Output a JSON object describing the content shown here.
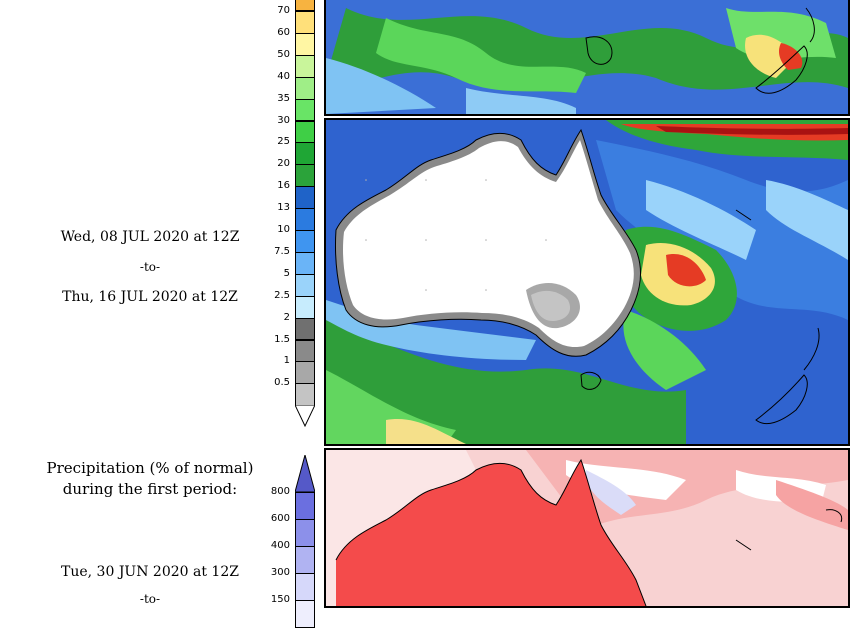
{
  "precip_scale": {
    "labels": [
      "70",
      "60",
      "50",
      "40",
      "35",
      "30",
      "25",
      "20",
      "16",
      "13",
      "10",
      "7.5",
      "5",
      "2.5",
      "2",
      "1.5",
      "1",
      "0.5"
    ],
    "colors": [
      "#ffe07a",
      "#fff6a3",
      "#c9f59b",
      "#9fee87",
      "#69e466",
      "#3fcf46",
      "#1fa635",
      "#2ba33a",
      "#1f63c8",
      "#2b7be0",
      "#3f95f0",
      "#6ab4f7",
      "#9ad3fa",
      "#c7ecfd",
      "#707070",
      "#8a8a8a",
      "#a8a8a8",
      "#c4c4c4"
    ],
    "top_color": "#f7b340"
  },
  "period_text": {
    "start": "Wed, 08 JUL 2020 at 12Z",
    "separator": "-to-",
    "end": "Thu, 16 JUL 2020 at 12Z"
  },
  "lower_section": {
    "heading_line1": "Precipitation (% of normal)",
    "heading_line2": "during the first period:",
    "start": "Tue, 30 JUN 2020 at 12Z",
    "separator": "-to-"
  },
  "percent_scale": {
    "labels": [
      "800",
      "600",
      "400",
      "300",
      "150"
    ],
    "colors": [
      "#6b6fe0",
      "#8c90ea",
      "#b0b3f2",
      "#d6d8fa",
      "#eeeefd"
    ],
    "top_color": "#5559c8"
  },
  "colors": {
    "land_dry": "#ffffff",
    "map_border": "#000000",
    "percent_red": "#f44b4b"
  }
}
